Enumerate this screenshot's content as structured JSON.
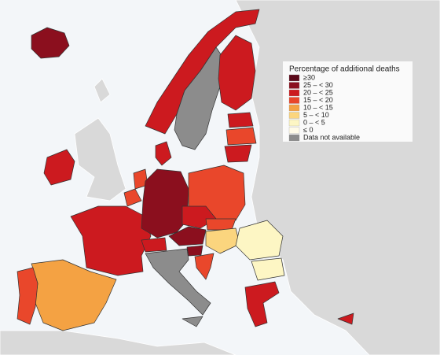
{
  "legend": {
    "title": "Percentage of additional deaths",
    "items": [
      {
        "label": "≥30",
        "color": "#5c0a1a"
      },
      {
        "label": "25 – < 30",
        "color": "#8b0f1e"
      },
      {
        "label": "20 – < 25",
        "color": "#cc1a1f"
      },
      {
        "label": "15 – < 20",
        "color": "#e9472b"
      },
      {
        "label": "10 – < 15",
        "color": "#f4a243"
      },
      {
        "label": "5 – < 10",
        "color": "#fbd57e"
      },
      {
        "label": "0 – < 5",
        "color": "#fdf6c4"
      },
      {
        "label": "≤ 0",
        "color": "#fffbe8"
      },
      {
        "label": "Data not available",
        "color": "#8c8c8c"
      }
    ]
  }
}
